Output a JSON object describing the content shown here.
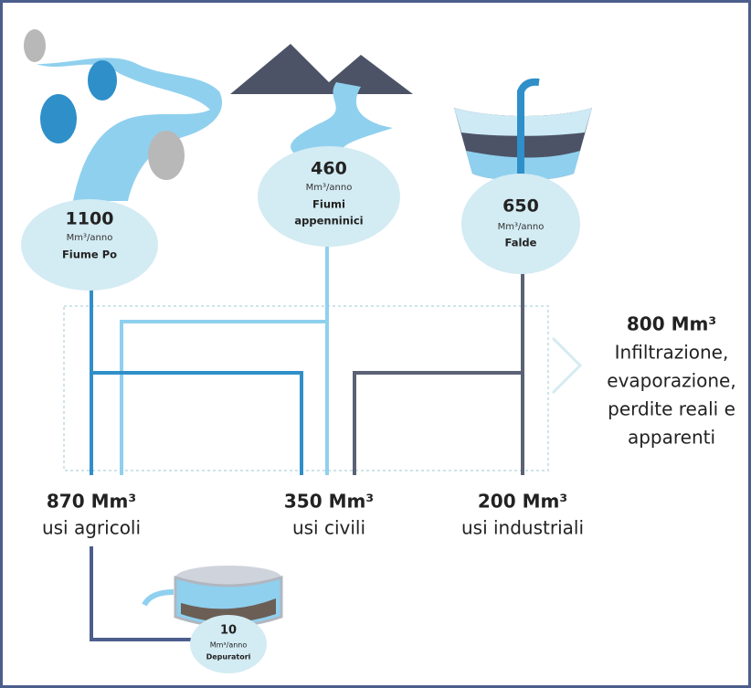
{
  "sources": [
    {
      "value": "1100",
      "unit": "Mm³/anno",
      "name": [
        "Fiume Po"
      ]
    },
    {
      "value": "460",
      "unit": "Mm³/anno",
      "name": [
        "Fiumi",
        "appenninici"
      ]
    },
    {
      "value": "650",
      "unit": "Mm³/anno",
      "name": [
        "Falde"
      ]
    }
  ],
  "uses": [
    {
      "value": "870 Mm³",
      "label": "usi agricoli"
    },
    {
      "value": "350 Mm³",
      "label": "usi civili"
    },
    {
      "value": "200 Mm³",
      "label": "usi industriali"
    }
  ],
  "loss": {
    "value": "800 Mm³",
    "lines": [
      "Infiltrazione,",
      "evaporazione,",
      "perdite reali e",
      "apparenti"
    ]
  },
  "treatment": {
    "value": "10",
    "unit": "Mm³/anno",
    "name": "Depuratori"
  }
}
